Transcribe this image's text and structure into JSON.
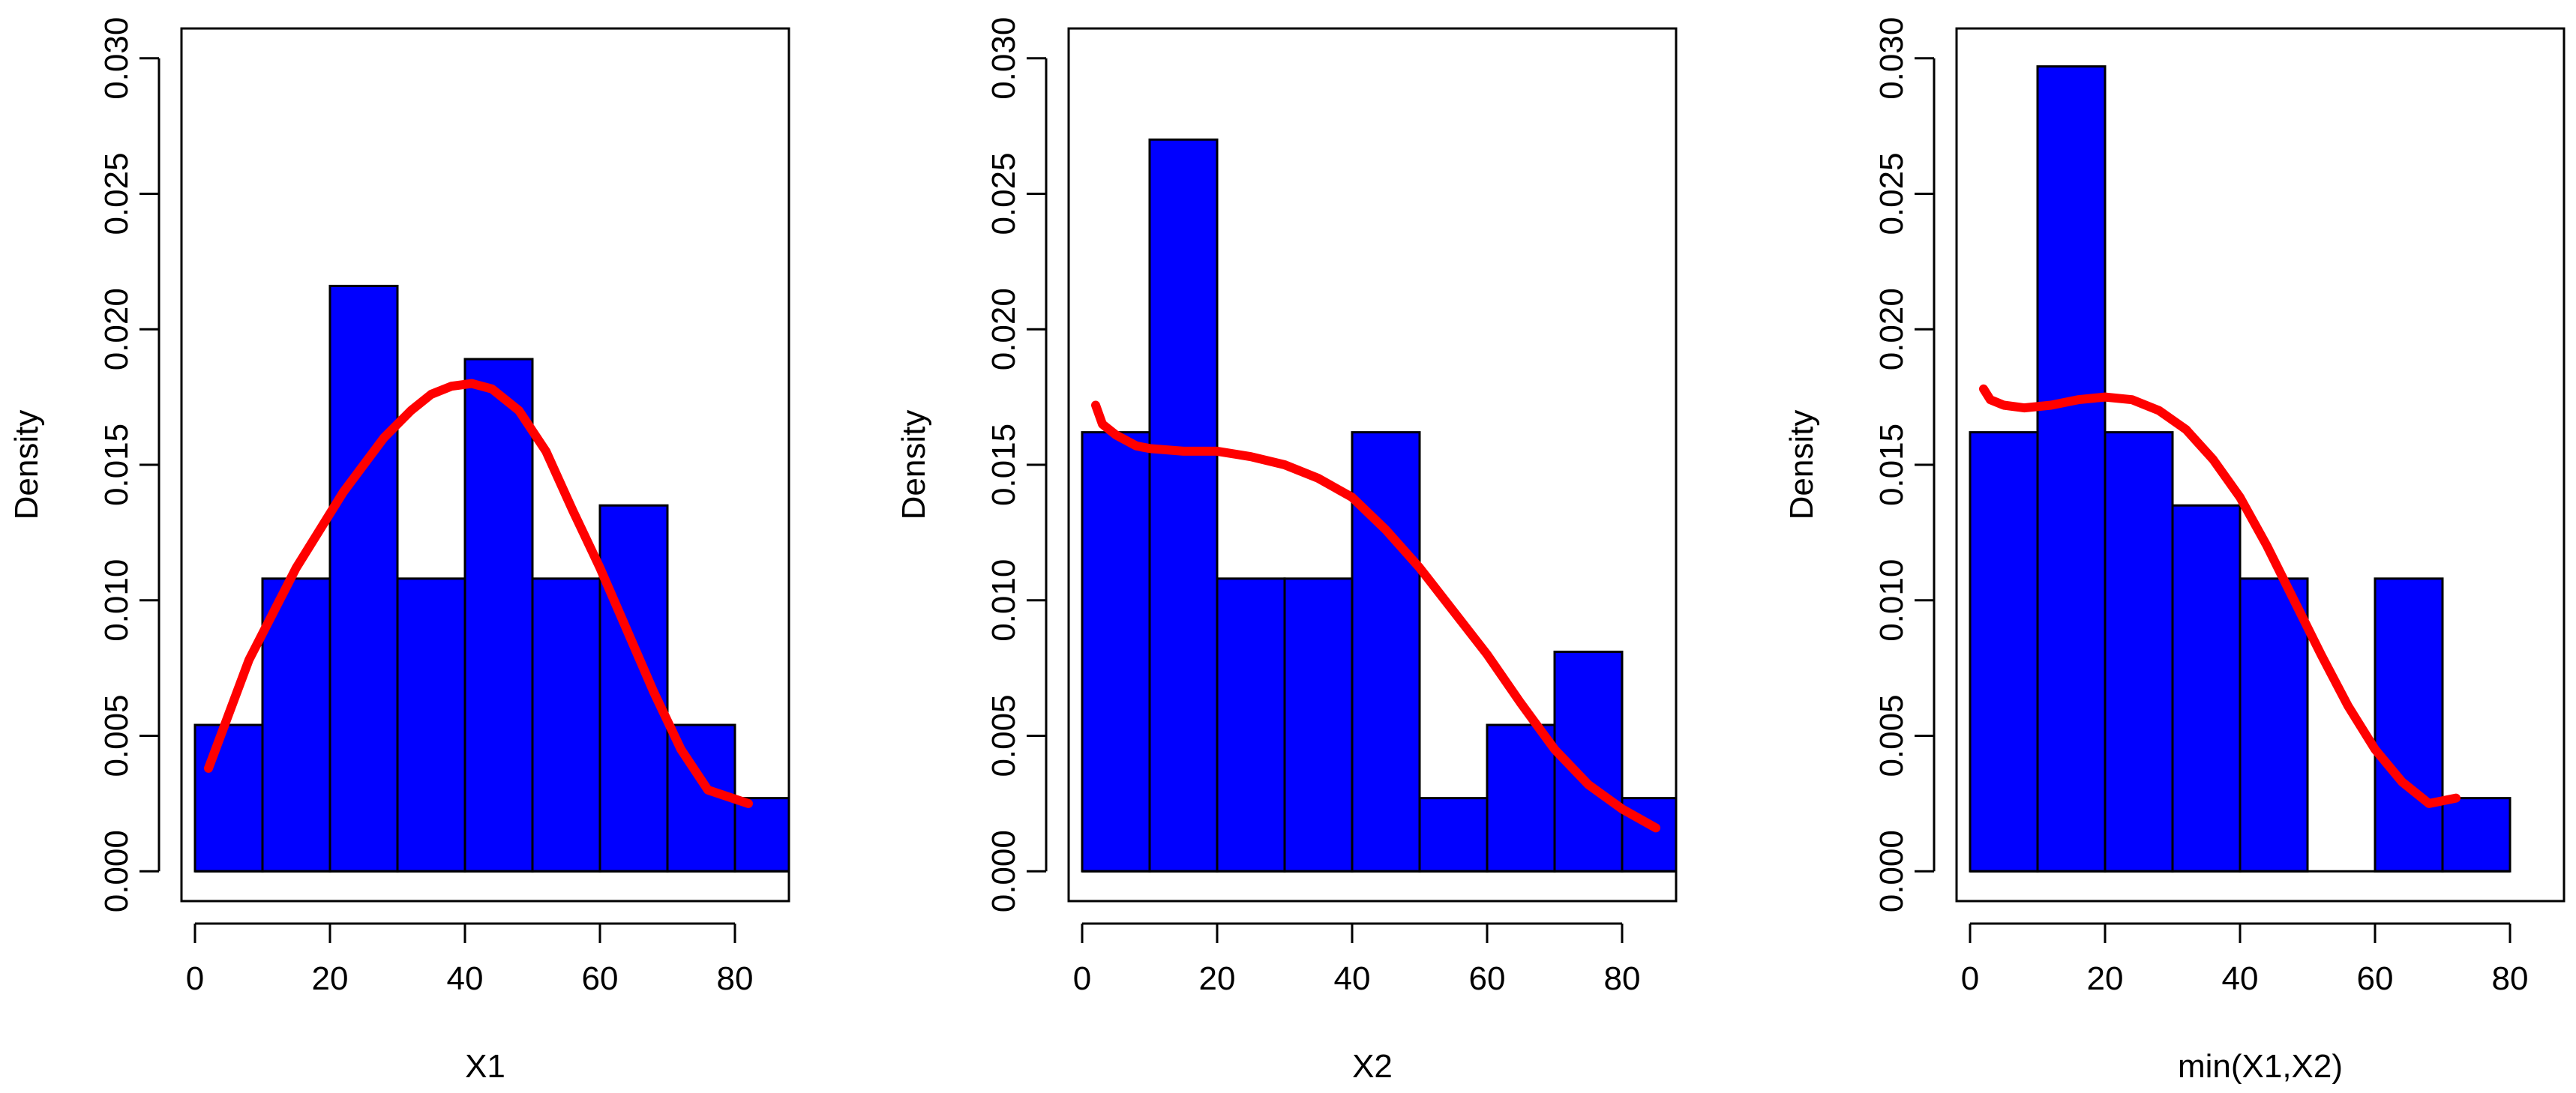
{
  "figure": {
    "background": "#ffffff",
    "bar_color": "#0000ff",
    "bar_outline": "#000000",
    "curve_color": "#ff0000"
  },
  "chart_data": [
    {
      "type": "bar",
      "subtype": "histogram-with-density-curve",
      "title": "",
      "xlabel": "X1",
      "ylabel": "Density",
      "xlim": [
        -2,
        88
      ],
      "ylim": [
        -0.0011,
        0.0311
      ],
      "xticks": [
        "0",
        "20",
        "40",
        "60",
        "80"
      ],
      "yticks": [
        "0.000",
        "0.005",
        "0.010",
        "0.015",
        "0.020",
        "0.025",
        "0.030"
      ],
      "bin_edges": [
        0,
        10,
        20,
        30,
        40,
        50,
        60,
        70,
        80,
        90
      ],
      "values": [
        0.0054,
        0.0108,
        0.0216,
        0.0108,
        0.0189,
        0.0108,
        0.0135,
        0.0054,
        0.0027
      ],
      "curve": {
        "x": [
          2,
          8,
          15,
          22,
          28,
          32,
          35,
          38,
          41,
          44,
          48,
          52,
          56,
          60,
          64,
          68,
          72,
          76,
          82
        ],
        "y": [
          0.0038,
          0.0078,
          0.0112,
          0.014,
          0.016,
          0.017,
          0.0176,
          0.0179,
          0.018,
          0.0178,
          0.017,
          0.0155,
          0.0133,
          0.0112,
          0.0089,
          0.0066,
          0.0045,
          0.003,
          0.0025
        ]
      }
    },
    {
      "type": "bar",
      "subtype": "histogram-with-density-curve",
      "title": "",
      "xlabel": "X2",
      "ylabel": "Density",
      "xlim": [
        -2,
        88
      ],
      "ylim": [
        -0.0011,
        0.0311
      ],
      "xticks": [
        "0",
        "20",
        "40",
        "60",
        "80"
      ],
      "yticks": [
        "0.000",
        "0.005",
        "0.010",
        "0.015",
        "0.020",
        "0.025",
        "0.030"
      ],
      "bin_edges": [
        0,
        10,
        20,
        30,
        40,
        50,
        60,
        70,
        80,
        90
      ],
      "values": [
        0.0162,
        0.027,
        0.0108,
        0.0108,
        0.0162,
        0.0027,
        0.0054,
        0.0081,
        0.0027
      ],
      "curve": {
        "x": [
          2,
          3,
          5,
          8,
          10,
          15,
          20,
          25,
          30,
          35,
          40,
          45,
          50,
          55,
          60,
          65,
          70,
          75,
          80,
          85
        ],
        "y": [
          0.0172,
          0.0165,
          0.0161,
          0.0157,
          0.0156,
          0.0155,
          0.0155,
          0.0153,
          0.015,
          0.0145,
          0.0138,
          0.0126,
          0.0112,
          0.0096,
          0.008,
          0.0062,
          0.0045,
          0.0032,
          0.0023,
          0.0016
        ]
      }
    },
    {
      "type": "bar",
      "subtype": "histogram-with-density-curve",
      "title": "",
      "xlabel": "min(X1,X2)",
      "ylabel": "Density",
      "xlim": [
        -2,
        88
      ],
      "ylim": [
        -0.0011,
        0.0311
      ],
      "xticks": [
        "0",
        "20",
        "40",
        "60",
        "80"
      ],
      "yticks": [
        "0.000",
        "0.005",
        "0.010",
        "0.015",
        "0.020",
        "0.025",
        "0.030"
      ],
      "bin_edges": [
        0,
        10,
        20,
        30,
        40,
        50,
        60,
        70,
        80
      ],
      "values": [
        0.0162,
        0.0297,
        0.0162,
        0.0135,
        0.0108,
        0.0,
        0.0108,
        0.0027
      ],
      "curve": {
        "x": [
          2,
          3,
          5,
          8,
          12,
          16,
          20,
          24,
          28,
          32,
          36,
          40,
          44,
          48,
          52,
          56,
          60,
          64,
          68,
          72
        ],
        "y": [
          0.0178,
          0.0174,
          0.0172,
          0.0171,
          0.0172,
          0.0174,
          0.0175,
          0.0174,
          0.017,
          0.0163,
          0.0152,
          0.0138,
          0.012,
          0.01,
          0.008,
          0.0061,
          0.0045,
          0.0033,
          0.0025,
          0.0027
        ]
      }
    }
  ]
}
